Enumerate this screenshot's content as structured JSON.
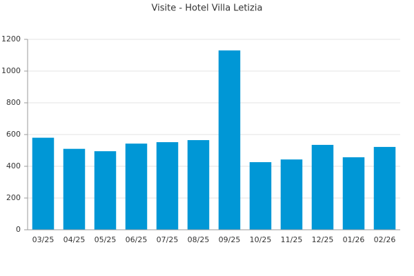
{
  "chart_data": {
    "type": "bar",
    "title": "Visite - Hotel Villa Letizia",
    "categories": [
      "03/25",
      "04/25",
      "05/25",
      "06/25",
      "07/25",
      "08/25",
      "09/25",
      "10/25",
      "11/25",
      "12/25",
      "01/26",
      "02/26"
    ],
    "values": [
      580,
      510,
      495,
      543,
      552,
      565,
      1130,
      426,
      443,
      535,
      457,
      522
    ],
    "color": "#0097d6",
    "ylim": [
      0,
      1200
    ],
    "yticks": [
      0,
      200,
      400,
      600,
      800,
      1000,
      1200
    ],
    "grid": true
  }
}
